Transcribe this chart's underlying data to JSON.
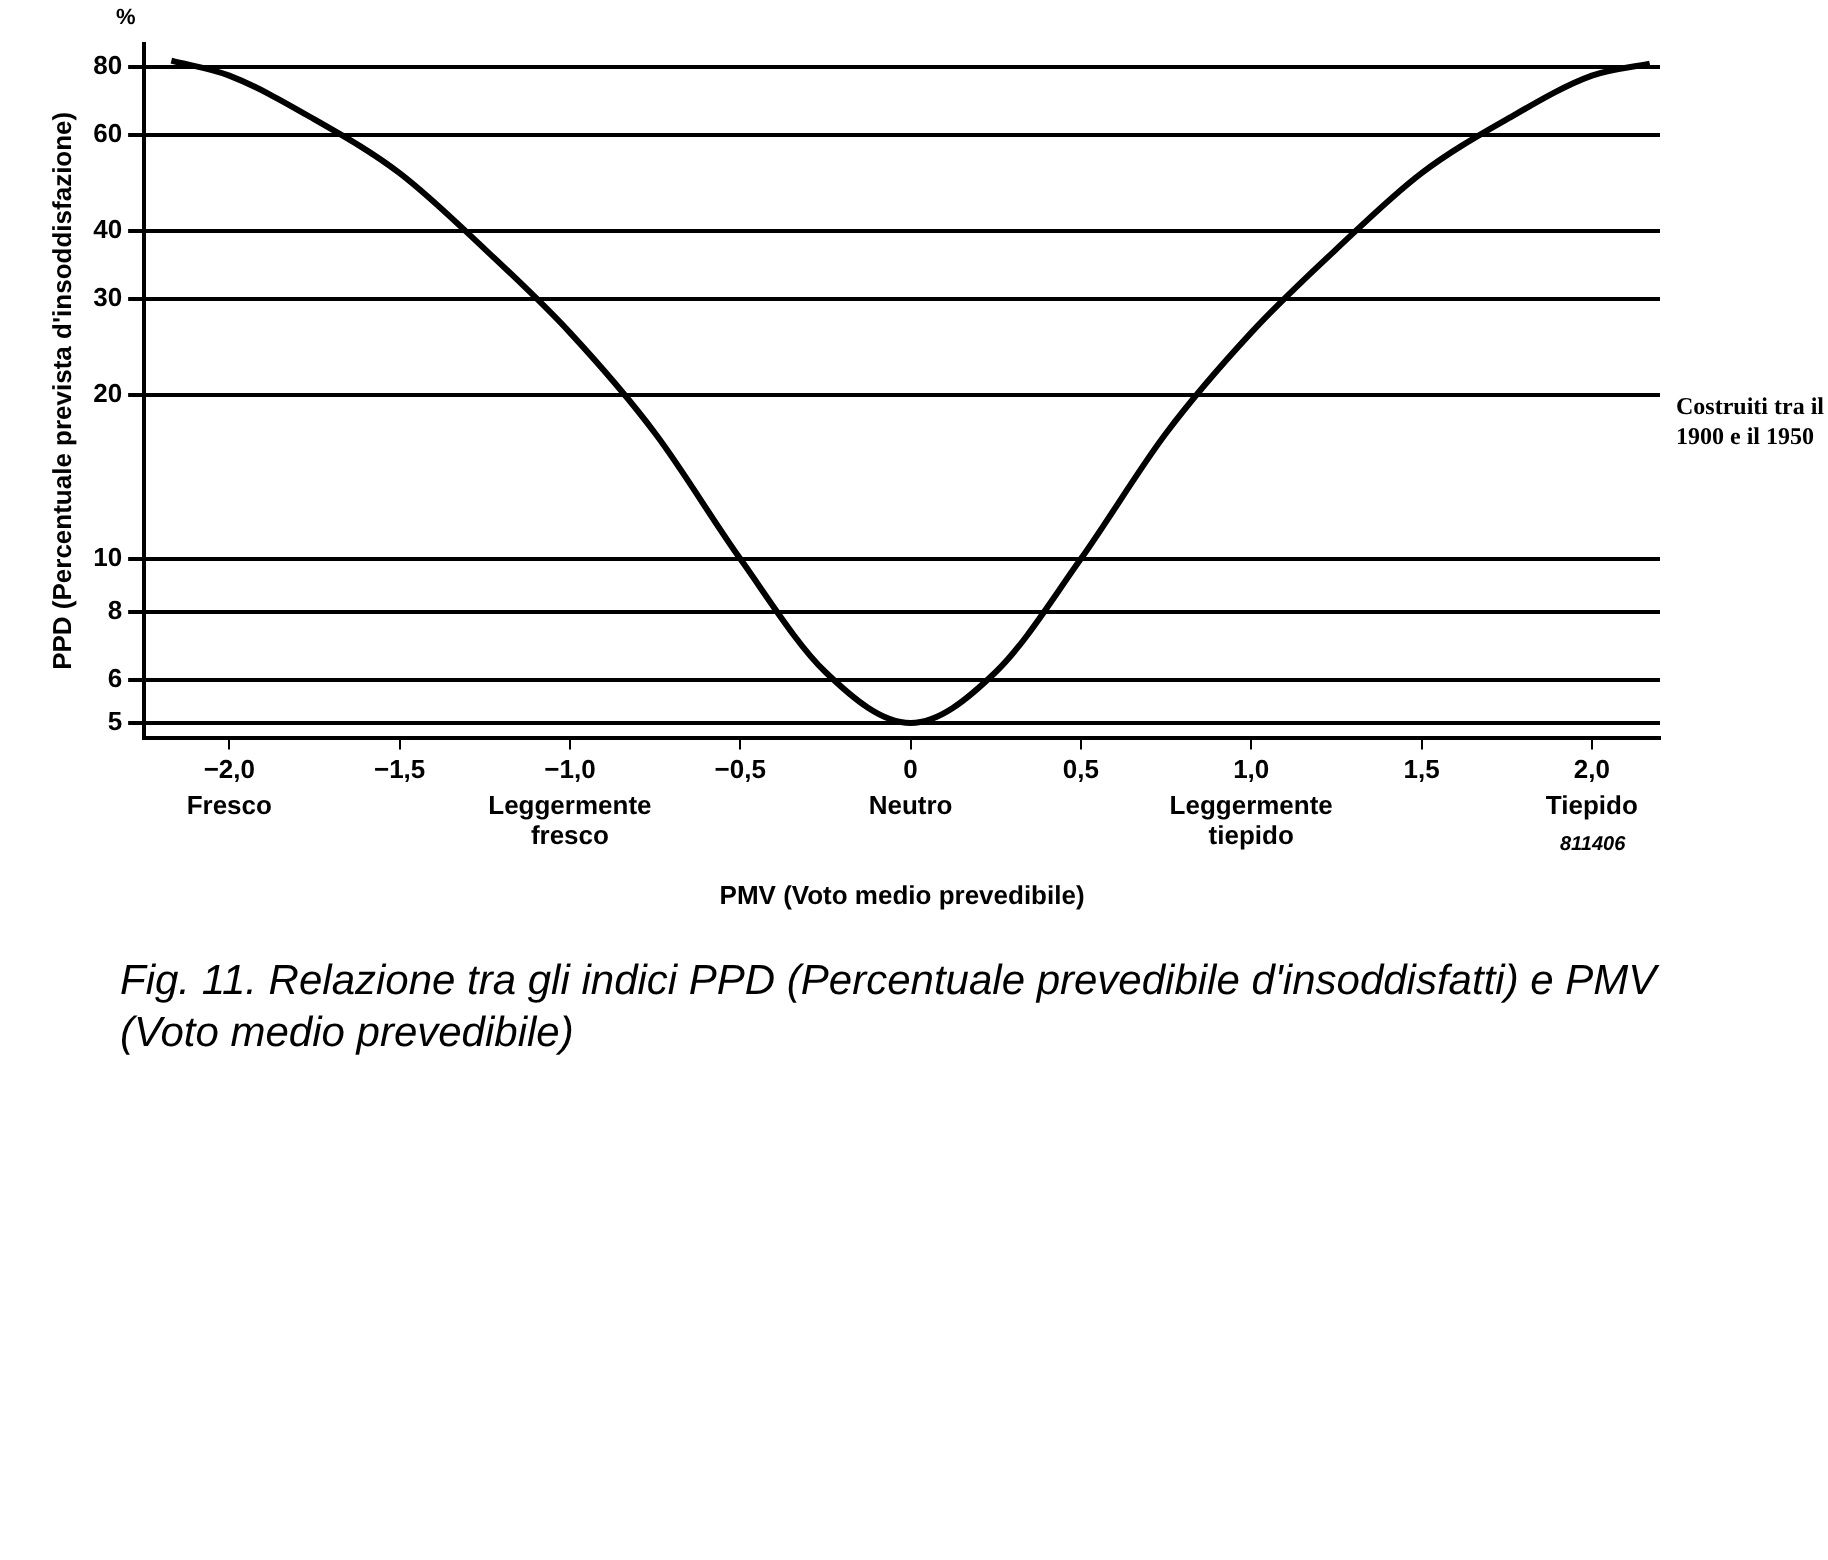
{
  "chart_data": {
    "type": "line",
    "title": "Fig. 11. Relazione tra gli indici PPD (Percentuale prevedibile d'insoddisfatti) e PMV (Voto medio prevedibile)",
    "xlabel": "PMV (Voto medio prevedibile)",
    "ylabel": "PPD (Percentuale prevista d'insoddisfazione)",
    "x": [
      -2.17,
      -2.0,
      -1.75,
      -1.5,
      -1.25,
      -1.0,
      -0.75,
      -0.5,
      -0.25,
      0,
      0.25,
      0.5,
      0.75,
      1.0,
      1.25,
      1.5,
      1.75,
      2.0,
      2.17
    ],
    "series": [
      {
        "color": "#000000",
        "values": [
          82,
          77,
          64,
          51,
          37,
          26,
          17,
          10,
          6.2,
          5,
          6.2,
          10,
          17,
          26,
          37,
          51,
          64,
          77,
          81
        ]
      }
    ],
    "log": true,
    "ylim": [
      4.7,
      88
    ],
    "yticks": [
      5,
      6,
      8,
      10,
      20,
      30,
      40,
      60,
      80
    ],
    "xlim": [
      -2.25,
      2.2
    ],
    "xticks": [
      {
        "value": -2,
        "label": "−2,0"
      },
      {
        "value": -1.5,
        "label": "−1,5"
      },
      {
        "value": -1,
        "label": "−1,0"
      },
      {
        "value": -0.5,
        "label": "−0,5"
      },
      {
        "value": 0,
        "label": "0"
      },
      {
        "value": 0.5,
        "label": "0,5"
      },
      {
        "value": 1,
        "label": "1,0"
      },
      {
        "value": 1.5,
        "label": "1,5"
      },
      {
        "value": 2,
        "label": "2,0"
      }
    ],
    "grid": "y",
    "legend": false,
    "marker": "none",
    "line_style": "solid",
    "annotations": [
      "Fresco",
      "Leggermente fresco",
      "Neutro",
      "Leggermente tiepido",
      "Tiepido",
      "%",
      "811406",
      "Costruiti tra il 1900 e il 1950"
    ]
  }
}
